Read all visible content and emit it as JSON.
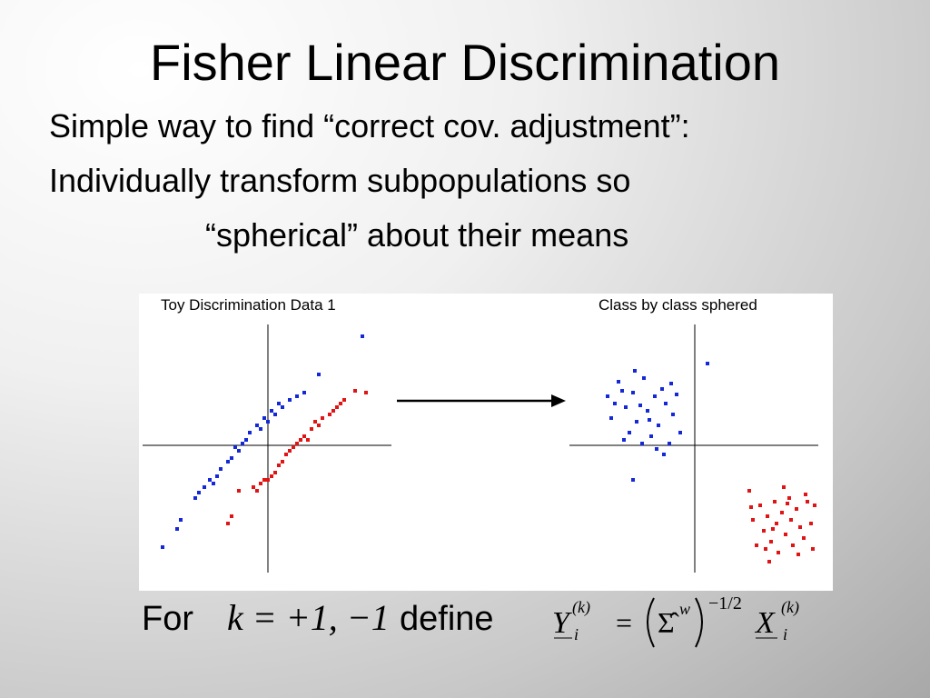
{
  "title": "Fisher Linear Discrimination",
  "bullets": [
    "Simple way to find “correct cov. adjustment”:",
    "Individually transform subpopulations so",
    "“spherical” about their means"
  ],
  "chart_data": [
    {
      "type": "scatter",
      "title": "Toy Discrimination Data 1",
      "xlim": [
        -7,
        7
      ],
      "ylim": [
        -7,
        7
      ],
      "series": [
        {
          "color": "#1428d8",
          "x": [
            -4,
            -3.8,
            -3.5,
            -3.2,
            -3,
            -2.6,
            -2.2,
            -2,
            -1.6,
            -1.4,
            -1.2,
            -1,
            -0.6,
            -0.4,
            -0.2,
            0,
            0.2,
            0.4,
            0.8,
            1.2,
            1.6,
            2,
            -4.8,
            -5,
            -5.8,
            2.8,
            5.2,
            -2.8,
            -1.8,
            0.6
          ],
          "y": [
            -2.8,
            -2.5,
            -2.2,
            -1.8,
            -2,
            -1.2,
            -0.8,
            -0.6,
            -0.2,
            0.2,
            0.4,
            0.8,
            1.2,
            1,
            1.6,
            1.4,
            2,
            1.8,
            2.2,
            2.6,
            2.8,
            3,
            -4,
            -4.5,
            -5.5,
            4,
            6.1,
            -1.6,
            0,
            2.4
          ]
        },
        {
          "color": "#e01414",
          "x": [
            -0.6,
            -0.4,
            0,
            0.2,
            0.4,
            1,
            1.4,
            1.6,
            2,
            2.4,
            2.8,
            3,
            3.4,
            3.8,
            4.2,
            4.8,
            5.4,
            1.2,
            2.2,
            3.6,
            -0.8,
            0.6,
            -2,
            -1.6,
            -2.2,
            0.8,
            1.8,
            4,
            2.6,
            -0.2
          ],
          "y": [
            -2.4,
            -2,
            -1.8,
            -1.6,
            -1.4,
            -0.4,
            0,
            0.2,
            0.6,
            1,
            1.2,
            1.6,
            1.8,
            2.2,
            2.6,
            3.1,
            3,
            -0.2,
            0.4,
            2,
            -2.2,
            -1,
            -3.8,
            -2.4,
            -4.2,
            -0.8,
            0.4,
            2.4,
            1.4,
            -1.8
          ]
        }
      ]
    },
    {
      "type": "scatter",
      "title": "Class by class sphered",
      "xlim": [
        -7,
        7
      ],
      "ylim": [
        -7,
        7
      ],
      "series": [
        {
          "color": "#1428d8",
          "x": [
            -3,
            -4.8,
            -4.6,
            -4.2,
            -3.8,
            -3.6,
            -3.4,
            -3.2,
            -2.8,
            -2.6,
            -2.4,
            -2.2,
            -2,
            -1.8,
            -1.6,
            -1.4,
            -1.2,
            -1,
            -0.8,
            -3.9,
            -4.4,
            -2.9,
            -3.3,
            -2.1,
            -1.3,
            -4,
            -2.5,
            0.7,
            -3.4,
            -1.7
          ],
          "y": [
            2.3,
            2.8,
            1.6,
            3.6,
            2.2,
            0.8,
            3,
            1.4,
            3.8,
            2,
            0.6,
            2.8,
            1.2,
            3.2,
            2.4,
            0.2,
            1.8,
            2.9,
            0.8,
            0.4,
            2.4,
            0.2,
            4.2,
            -0.1,
            3.5,
            3.1,
            1.5,
            4.6,
            -1.8,
            -0.4
          ]
        },
        {
          "color": "#e01414",
          "x": [
            3,
            3.2,
            3.4,
            3.6,
            3.8,
            4,
            4.2,
            4.4,
            4.5,
            4.6,
            4.8,
            5,
            5.2,
            5.3,
            5.4,
            5.6,
            5.8,
            6,
            6.2,
            6.4,
            6.6,
            4.1,
            3.1,
            4.9,
            5.7,
            6.5,
            4.3,
            5.1,
            3.9,
            6.1
          ],
          "y": [
            -2.4,
            -4,
            -5.4,
            -3.2,
            -4.6,
            -3.8,
            -5.2,
            -3,
            -4.2,
            -5.8,
            -3.6,
            -4.8,
            -2.8,
            -4,
            -5.4,
            -3.4,
            -4.4,
            -5,
            -3,
            -4.2,
            -3.2,
            -6.3,
            -3.3,
            -2.2,
            -5.9,
            -5.6,
            -4.5,
            -3.1,
            -5.6,
            -2.6
          ]
        }
      ]
    }
  ],
  "footer": {
    "for": "For",
    "k_def": "k = +1, −1",
    "define": "define",
    "formula": {
      "lhs": "Y",
      "lhs_sub": "i",
      "lhs_sup": "(k)",
      "eq": "=",
      "sigma": "Σ̂",
      "sigma_sup": "w",
      "power": "−1/2",
      "rhs": "X",
      "rhs_sub": "i",
      "rhs_sup": "(k)"
    }
  }
}
